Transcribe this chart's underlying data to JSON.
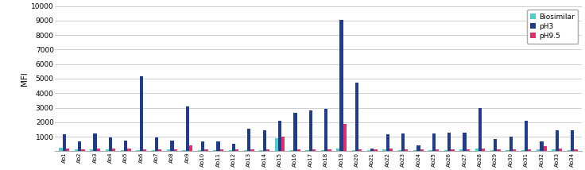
{
  "categories": [
    "Ab1",
    "Ab2",
    "Ab3",
    "Ab4",
    "Ab5",
    "Ab6",
    "Ab7",
    "Ab8",
    "Ab9",
    "Ab10",
    "Ab11",
    "Ab12",
    "Ab13",
    "Ab14",
    "Ab15",
    "Ab16",
    "Ab17",
    "Ab18",
    "Ab19",
    "Ab20",
    "Ab21",
    "Ab22",
    "Ab23",
    "Ab24",
    "Ab25",
    "Ab26",
    "Ab27",
    "Ab28",
    "Ab29",
    "Ab30",
    "Ab31",
    "Ab32",
    "Ab33",
    "Ab34"
  ],
  "biosimilar": [
    250,
    100,
    150,
    120,
    80,
    80,
    80,
    150,
    80,
    80,
    80,
    80,
    80,
    80,
    900,
    80,
    80,
    80,
    200,
    80,
    80,
    120,
    80,
    80,
    80,
    80,
    150,
    200,
    80,
    80,
    80,
    150,
    150,
    80
  ],
  "pH3": [
    1150,
    650,
    1200,
    950,
    750,
    5150,
    950,
    750,
    3100,
    650,
    650,
    500,
    1550,
    1450,
    2100,
    2650,
    2800,
    2900,
    9050,
    4750,
    200,
    1150,
    1200,
    400,
    1200,
    1250,
    1300,
    3000,
    850,
    1000,
    2100,
    700,
    1450,
    1450
  ],
  "pH9_5": [
    200,
    150,
    200,
    200,
    200,
    150,
    100,
    150,
    380,
    100,
    150,
    150,
    100,
    150,
    1000,
    100,
    100,
    100,
    1900,
    100,
    100,
    200,
    150,
    100,
    100,
    100,
    100,
    200,
    150,
    100,
    100,
    350,
    200,
    150
  ],
  "biosimilar_color": "#4dd0cc",
  "pH3_color": "#1f3d8c",
  "pH9_5_color": "#e0306a",
  "ylabel": "MFI",
  "ylim": [
    0,
    10000
  ],
  "yticks": [
    0,
    1000,
    2000,
    3000,
    4000,
    5000,
    6000,
    7000,
    8000,
    9000,
    10000
  ],
  "ytick_labels": [
    "",
    "1000",
    "2000",
    "3000",
    "4000",
    "5000",
    "6000",
    "7000",
    "8000",
    "9000",
    "10000"
  ],
  "legend_labels": [
    "Biosimilar",
    "pH3",
    "pH9.5"
  ],
  "background_color": "#ffffff",
  "grid_color": "#c8c8c8"
}
